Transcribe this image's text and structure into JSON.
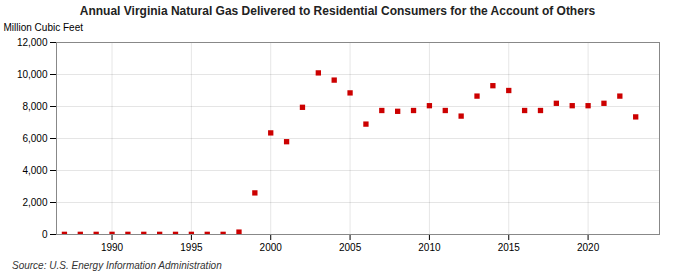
{
  "chart_data": {
    "type": "scatter",
    "title": "Annual Virginia Natural Gas Delivered to Residential Consumers for the Account of Others",
    "ylabel": "Million Cubic Feet",
    "source": "Source: U.S. Energy Information Administration",
    "x": [
      1987,
      1988,
      1989,
      1990,
      1991,
      1992,
      1993,
      1994,
      1995,
      1996,
      1997,
      1998,
      1999,
      2000,
      2001,
      2002,
      2003,
      2004,
      2005,
      2006,
      2007,
      2008,
      2009,
      2010,
      2011,
      2012,
      2013,
      2014,
      2015,
      2016,
      2017,
      2018,
      2019,
      2020,
      2021,
      2022,
      2023
    ],
    "values": [
      10,
      10,
      10,
      10,
      10,
      10,
      10,
      10,
      10,
      10,
      10,
      150,
      2600,
      6350,
      5800,
      7950,
      10100,
      9650,
      8850,
      6900,
      7750,
      7700,
      7750,
      8050,
      7750,
      7400,
      8650,
      9300,
      9000,
      7750,
      7750,
      8200,
      8050,
      8050,
      8200,
      8650,
      7350
    ],
    "color": "#cc0000",
    "marker": "square",
    "xlim": [
      1986.5,
      2024.5
    ],
    "xticks": [
      1990,
      1995,
      2000,
      2005,
      2010,
      2015,
      2020
    ],
    "ylim": [
      0,
      12000
    ],
    "yticks": [
      0,
      {
        "value": 2000,
        "label": "2,000"
      },
      {
        "value": 4000,
        "label": "4,000"
      },
      {
        "value": 6000,
        "label": "6,000"
      },
      {
        "value": 8000,
        "label": "8,000"
      },
      {
        "value": 10000,
        "label": "10,000"
      },
      {
        "value": 12000,
        "label": "12,000"
      }
    ],
    "grid": true
  }
}
